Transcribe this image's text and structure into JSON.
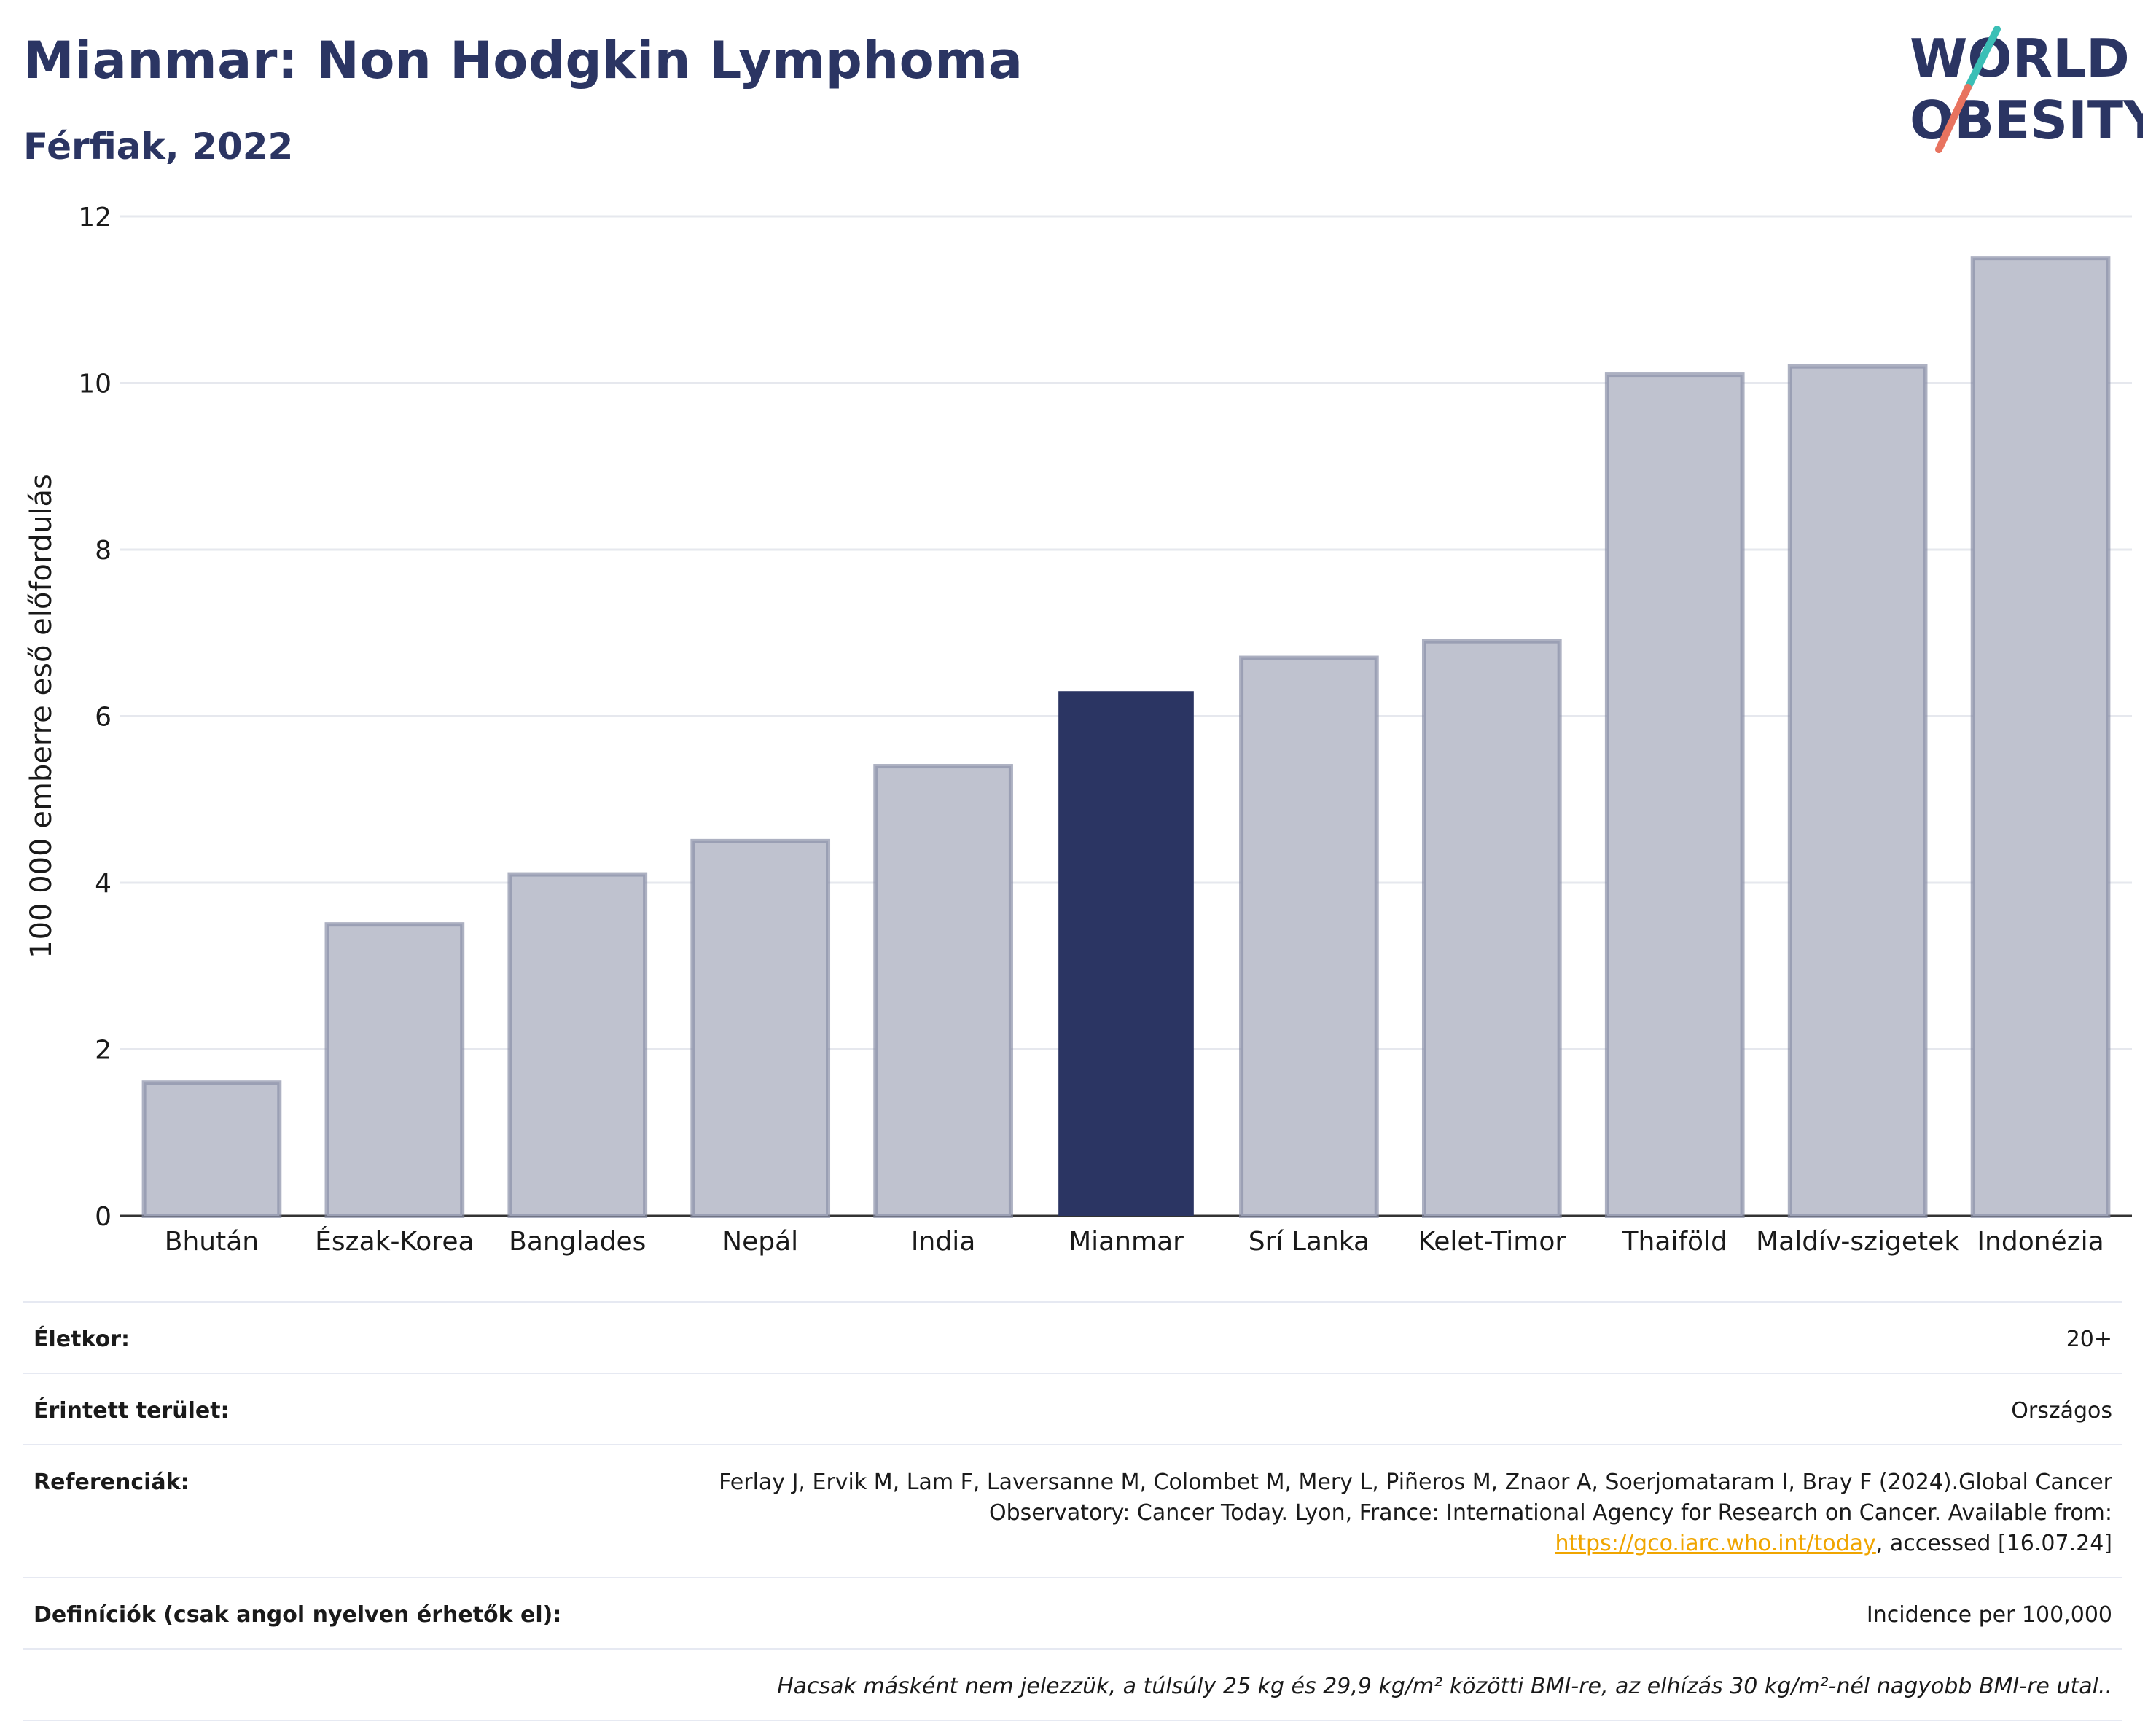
{
  "header": {
    "title": "Mianmar: Non Hodgkin Lymphoma",
    "subtitle": "Férfiak, 2022"
  },
  "logo": {
    "line1": "WORLD",
    "line2": "OBESITY"
  },
  "colors": {
    "highlight": "#2b3563",
    "other": "#bfc2cf",
    "other_stroke": "#8a90a8",
    "accent_teal": "#3bbfb6",
    "accent_coral": "#e8735f"
  },
  "chart_data": {
    "type": "bar",
    "title": "Mianmar: Non Hodgkin Lymphoma",
    "subtitle": "Férfiak, 2022",
    "xlabel": "",
    "ylabel": "100 000 emberre eső előfordulás",
    "ylim": [
      0,
      12
    ],
    "yticks": [
      0,
      2,
      4,
      6,
      8,
      10,
      12
    ],
    "grid": true,
    "categories": [
      "Bhután",
      "Észak-Korea",
      "Banglades",
      "Nepál",
      "India",
      "Mianmar",
      "Srí Lanka",
      "Kelet-Timor",
      "Thaiföld",
      "Maldív-szigetek",
      "Indonézia"
    ],
    "values": [
      1.6,
      3.5,
      4.1,
      4.5,
      5.4,
      6.3,
      6.7,
      6.9,
      10.1,
      10.2,
      11.5
    ],
    "highlight": "Mianmar"
  },
  "info": {
    "age_label": "Életkor:",
    "age_value": "20+",
    "area_label": "Érintett terület:",
    "area_value": "Országos",
    "ref_label": "Referenciák:",
    "ref_text_1": "Ferlay J, Ervik M, Lam F, Laversanne M, Colombet M, Mery L, Piñeros M, Znaor A, Soerjomataram I, Bray F (2024).Global Cancer Observatory: Cancer Today. Lyon, France: International Agency for Research on Cancer. Available from: ",
    "ref_link": "https://gco.iarc.who.int/today",
    "ref_text_2": ", accessed [16.07.24]",
    "def_label": "Definíciók (csak angol nyelven érhetők el):",
    "def_value": "Incidence per 100,000",
    "note": "Hacsak másként nem jelezzük, a túlsúly 25 kg és 29,9 kg/m² közötti BMI-re, az elhízás 30 kg/m²-nél nagyobb BMI-re utal.."
  }
}
